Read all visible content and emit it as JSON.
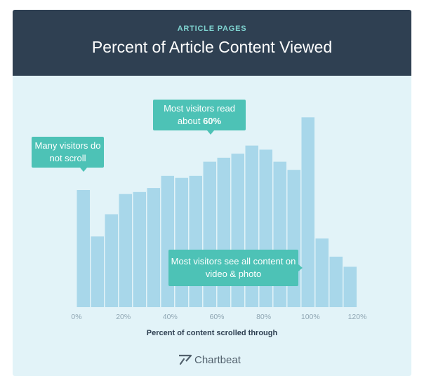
{
  "header": {
    "subtitle": "ARTICLE PAGES",
    "title": "Percent of Article Content Viewed"
  },
  "callouts": {
    "no_scroll": "Many visitors do not scroll",
    "read_prefix": "Most visitors read about ",
    "read_value": "60%",
    "see_all": "Most visitors see all content on video & photo"
  },
  "footer": {
    "brand": "Chartbeat"
  },
  "colors": {
    "header_bg": "#2f4052",
    "panel_bg": "#e2f3f8",
    "bar": "#a8d7ea",
    "callout": "#4dc2b6",
    "subtitle": "#7fd3d0"
  },
  "chart_data": {
    "type": "bar",
    "xlabel": "Percent of content scrolled through",
    "ylabel": "",
    "tick_labels": [
      "0%",
      "20%",
      "40%",
      "60%",
      "80%",
      "100%",
      "120%"
    ],
    "tick_values": [
      0,
      20,
      40,
      60,
      80,
      100,
      120
    ],
    "bin_width": 6,
    "bin_starts": [
      0,
      6,
      12,
      18,
      24,
      30,
      36,
      42,
      48,
      54,
      60,
      66,
      72,
      78,
      84,
      90,
      96,
      102,
      108,
      114
    ],
    "values": [
      58,
      35,
      46,
      56,
      57,
      59,
      65,
      64,
      65,
      72,
      74,
      76,
      80,
      78,
      72,
      68,
      94,
      34,
      25,
      20
    ],
    "ylim": [
      0,
      100
    ],
    "grid": false
  }
}
